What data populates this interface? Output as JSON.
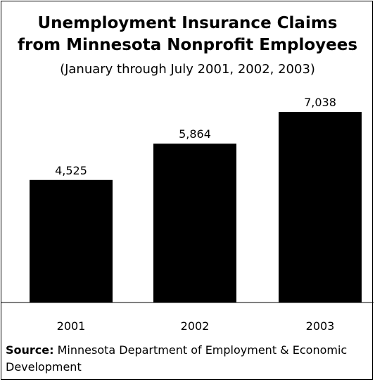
{
  "title_line1": "Unemployment Insurance Claims",
  "title_line2": "from Minnesota Nonprofit Employees",
  "subtitle": "(January through July 2001, 2002, 2003)",
  "source_label": "Source:",
  "source_text": " Minnesota Department of Employment & Economic Development",
  "colors": {
    "bar": "#000000",
    "background": "#ffffff",
    "text": "#000000"
  },
  "chart_data": {
    "type": "bar",
    "title": "Unemployment Insurance Claims from Minnesota Nonprofit Employees",
    "subtitle": "(January through July 2001, 2002, 2003)",
    "categories": [
      "2001",
      "2002",
      "2003"
    ],
    "values": [
      4525,
      5864,
      7038
    ],
    "value_labels": [
      "4,525",
      "5,864",
      "7,038"
    ],
    "xlabel": "",
    "ylabel": "",
    "ylim": [
      0,
      8000
    ],
    "grid": false,
    "legend": "none"
  }
}
